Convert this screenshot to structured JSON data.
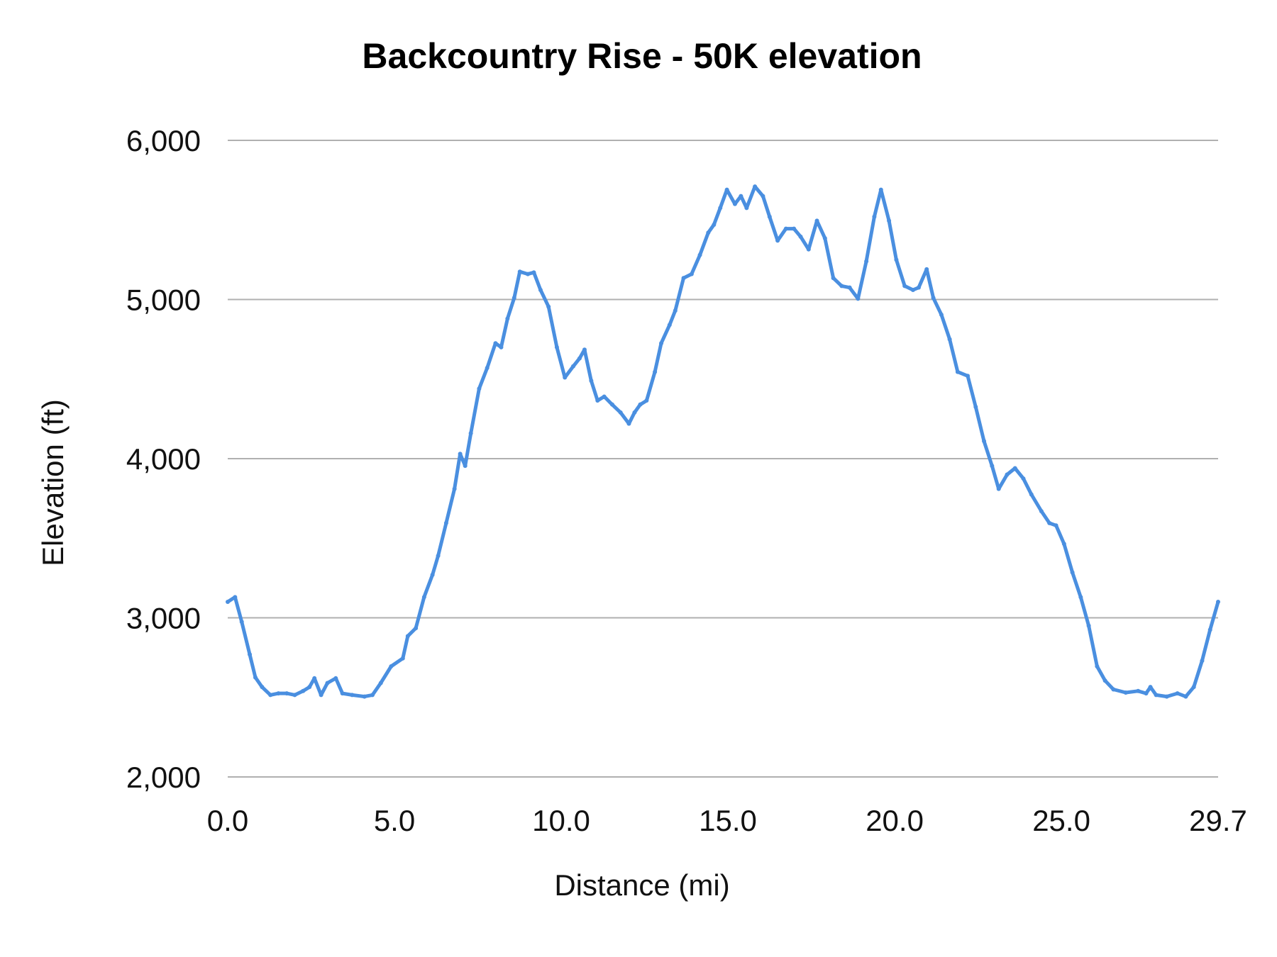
{
  "chart_data": {
    "type": "line",
    "title": "Backcountry Rise - 50K elevation",
    "xlabel": "Distance (mi)",
    "ylabel": "Elevation (ft)",
    "xlim": [
      0,
      29.7
    ],
    "ylim": [
      2000,
      6000
    ],
    "x_ticks": [
      "0.0",
      "5.0",
      "10.0",
      "15.0",
      "20.0",
      "25.0",
      "29.7"
    ],
    "x_tick_values": [
      0,
      5,
      10,
      15,
      20,
      25,
      29.7
    ],
    "y_ticks": [
      "2,000",
      "3,000",
      "4,000",
      "5,000",
      "6,000"
    ],
    "y_tick_values": [
      2000,
      3000,
      4000,
      5000,
      6000
    ],
    "grid": "horizontal",
    "legend": "none",
    "series": [
      {
        "color": "#4a8fe0",
        "x": [
          0,
          0.22,
          0.42,
          0.66,
          0.83,
          1.03,
          1.28,
          1.52,
          1.77,
          2.01,
          2.26,
          2.45,
          2.6,
          2.8,
          2.99,
          3.24,
          3.44,
          3.73,
          4.1,
          4.34,
          4.59,
          4.9,
          5.25,
          5.4,
          5.64,
          5.89,
          6.14,
          6.31,
          6.55,
          6.8,
          6.97,
          7.12,
          7.29,
          7.54,
          7.78,
          8.03,
          8.2,
          8.39,
          8.59,
          8.76,
          9.0,
          9.18,
          9.38,
          9.62,
          9.87,
          10.11,
          10.36,
          10.55,
          10.7,
          10.9,
          11.09,
          11.29,
          11.53,
          11.78,
          12.03,
          12.2,
          12.37,
          12.56,
          12.81,
          13.0,
          13.25,
          13.42,
          13.67,
          13.91,
          14.16,
          14.41,
          14.58,
          14.77,
          14.97,
          15.21,
          15.39,
          15.56,
          15.81,
          16.05,
          16.25,
          16.49,
          16.74,
          16.98,
          17.18,
          17.42,
          17.67,
          17.91,
          18.16,
          18.41,
          18.65,
          18.9,
          19.15,
          19.39,
          19.59,
          19.83,
          20.05,
          20.3,
          20.55,
          20.72,
          20.96,
          21.16,
          21.4,
          21.65,
          21.89,
          22.19,
          22.43,
          22.68,
          22.92,
          23.12,
          23.37,
          23.61,
          23.86,
          24.1,
          24.4,
          24.64,
          24.84,
          25.08,
          25.33,
          25.58,
          25.82,
          26.07,
          26.31,
          26.56,
          26.93,
          27.3,
          27.54,
          27.67,
          27.84,
          28.16,
          28.48,
          28.73,
          28.97,
          29.22,
          29.46,
          29.7
        ],
        "y": [
          3100,
          3130,
          2975,
          2770,
          2625,
          2565,
          2515,
          2525,
          2525,
          2515,
          2540,
          2565,
          2620,
          2515,
          2590,
          2620,
          2525,
          2515,
          2505,
          2515,
          2590,
          2695,
          2745,
          2885,
          2935,
          3130,
          3270,
          3390,
          3595,
          3810,
          4030,
          3955,
          4160,
          4440,
          4570,
          4725,
          4700,
          4880,
          5010,
          5175,
          5160,
          5170,
          5060,
          4955,
          4700,
          4510,
          4580,
          4630,
          4685,
          4490,
          4365,
          4390,
          4340,
          4290,
          4220,
          4290,
          4340,
          4365,
          4545,
          4725,
          4840,
          4930,
          5135,
          5160,
          5280,
          5420,
          5470,
          5575,
          5690,
          5600,
          5650,
          5575,
          5710,
          5650,
          5520,
          5370,
          5445,
          5445,
          5395,
          5315,
          5495,
          5385,
          5135,
          5085,
          5075,
          5005,
          5240,
          5520,
          5690,
          5495,
          5250,
          5085,
          5060,
          5075,
          5190,
          5010,
          4905,
          4750,
          4545,
          4520,
          4325,
          4110,
          3955,
          3810,
          3900,
          3940,
          3875,
          3775,
          3670,
          3595,
          3580,
          3465,
          3285,
          3130,
          2950,
          2695,
          2605,
          2550,
          2530,
          2540,
          2525,
          2565,
          2515,
          2505,
          2525,
          2505,
          2565,
          2730,
          2925,
          3100
        ]
      }
    ]
  }
}
